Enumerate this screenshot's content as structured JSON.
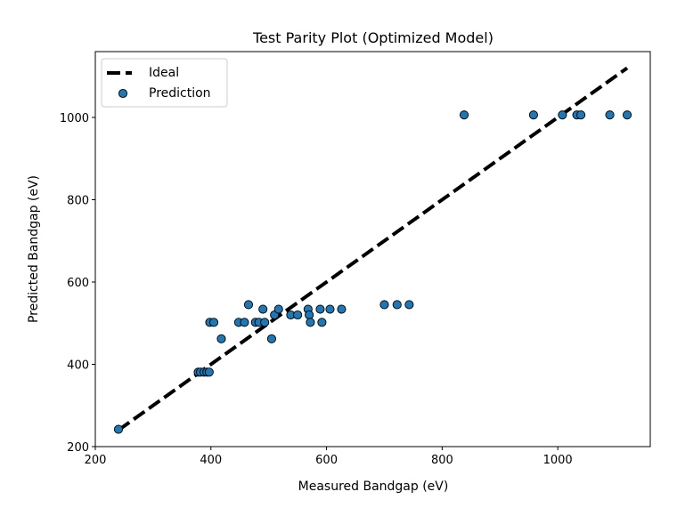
{
  "chart_data": {
    "type": "scatter",
    "title": "Test Parity Plot (Optimized Model)",
    "xlabel": "Measured Bandgap (eV)",
    "ylabel": "Predicted Bandgap (eV)",
    "xlim": [
      200,
      1160
    ],
    "ylim": [
      200,
      1160
    ],
    "xticks": [
      200,
      400,
      600,
      800,
      1000
    ],
    "yticks": [
      200,
      400,
      600,
      800,
      1000
    ],
    "grid": false,
    "legend_position": "top-left",
    "series": [
      {
        "name": "Ideal",
        "kind": "line",
        "style": "dashed",
        "color": "#000000",
        "x": [
          240,
          1120
        ],
        "y": [
          240,
          1120
        ]
      },
      {
        "name": "Prediction",
        "kind": "scatter",
        "color": "#1f77b4",
        "edgecolor": "#000000",
        "points": [
          [
            240,
            242
          ],
          [
            378,
            381
          ],
          [
            382,
            381
          ],
          [
            388,
            381
          ],
          [
            393,
            381
          ],
          [
            397,
            381
          ],
          [
            398,
            502
          ],
          [
            405,
            502
          ],
          [
            418,
            462
          ],
          [
            448,
            502
          ],
          [
            458,
            502
          ],
          [
            465,
            545
          ],
          [
            477,
            502
          ],
          [
            483,
            502
          ],
          [
            493,
            502
          ],
          [
            490,
            534
          ],
          [
            505,
            462
          ],
          [
            510,
            520
          ],
          [
            517,
            534
          ],
          [
            538,
            520
          ],
          [
            550,
            520
          ],
          [
            568,
            534
          ],
          [
            570,
            520
          ],
          [
            572,
            502
          ],
          [
            589,
            534
          ],
          [
            592,
            502
          ],
          [
            606,
            534
          ],
          [
            626,
            534
          ],
          [
            700,
            545
          ],
          [
            722,
            545
          ],
          [
            743,
            545
          ],
          [
            838,
            1006
          ],
          [
            958,
            1006
          ],
          [
            1008,
            1006
          ],
          [
            1033,
            1006
          ],
          [
            1040,
            1006
          ],
          [
            1090,
            1006
          ],
          [
            1120,
            1006
          ]
        ]
      }
    ]
  }
}
